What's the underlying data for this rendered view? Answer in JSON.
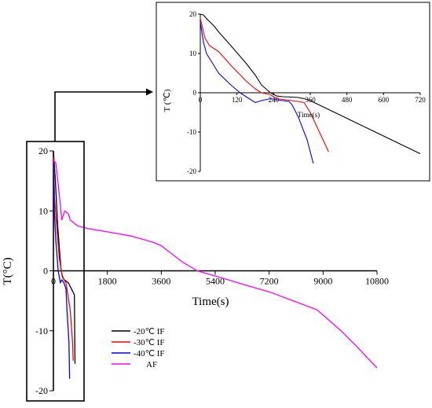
{
  "chart_data": [
    {
      "type": "line",
      "xlabel": "Time(s)",
      "ylabel": "T(°C)",
      "xlim": [
        0,
        10800
      ],
      "ylim": [
        -20,
        20
      ],
      "xticks": [
        "0",
        "1800",
        "3600",
        "5400",
        "7200",
        "9000",
        "10800"
      ],
      "yticks": [
        "20",
        "10",
        "0",
        "-10",
        "-20"
      ],
      "legend_position": "bottom-left",
      "series": [
        {
          "name": "-20℃ IF",
          "color": "#000000",
          "x": [
            0,
            60,
            150,
            250,
            300,
            320,
            360,
            500,
            600,
            700,
            720
          ],
          "y": [
            20,
            15.5,
            7,
            0.5,
            -1,
            -1.2,
            -1.5,
            -2,
            -3,
            -4,
            -15.5
          ]
        },
        {
          "name": "-30℃ IF",
          "color": "#ff0000",
          "x": [
            0,
            40,
            100,
            200,
            280,
            350,
            420,
            560,
            640,
            660
          ],
          "y": [
            19,
            12,
            8,
            2,
            -0.5,
            -1.5,
            -2,
            -6.5,
            -12,
            -15
          ]
        },
        {
          "name": "-40℃ IF",
          "color": "#0000ff",
          "x": [
            0,
            30,
            80,
            160,
            230,
            280,
            350,
            420,
            460,
            520,
            540
          ],
          "y": [
            18,
            10,
            5,
            0,
            -2,
            -1.5,
            -2,
            -3,
            -7,
            -12,
            -18
          ]
        },
        {
          "name": "AF",
          "color": "#ff00ff",
          "x": [
            0,
            80,
            160,
            280,
            380,
            500,
            560,
            800,
            1200,
            1800,
            2600,
            3300,
            3600,
            4300,
            4800,
            5500,
            6500,
            7200,
            8000,
            8800,
            9600,
            10100,
            10800
          ],
          "y": [
            18.5,
            18,
            14.5,
            8.5,
            10,
            9.5,
            8.5,
            7.5,
            7,
            6.5,
            5.8,
            4.8,
            4.2,
            1.5,
            0,
            -1,
            -2.5,
            -3.5,
            -5,
            -6.5,
            -10,
            -12.5,
            -16.2
          ]
        }
      ]
    },
    {
      "type": "line",
      "xlabel": "Time(s)",
      "ylabel": "T (℃)",
      "xlim": [
        0,
        720
      ],
      "ylim": [
        -20,
        20
      ],
      "xticks": [
        "0",
        "120",
        "240",
        "360",
        "480",
        "600",
        "720"
      ],
      "yticks": [
        "20",
        "10",
        "0",
        "-10",
        "-20"
      ],
      "series": [
        {
          "color": "#000000",
          "x": [
            0,
            10,
            25,
            45,
            60,
            100,
            150,
            180,
            200,
            230,
            250,
            270,
            300,
            320,
            340,
            360,
            720
          ],
          "y": [
            20,
            19.8,
            18.5,
            17,
            15.5,
            12,
            7.5,
            4.5,
            2,
            0,
            -0.8,
            -1,
            -1.1,
            -1.2,
            -1.5,
            -2,
            -15.5
          ]
        },
        {
          "color": "#ff0000",
          "x": [
            0,
            15,
            30,
            60,
            100,
            150,
            180,
            200,
            230,
            250,
            280,
            300,
            320,
            340,
            360,
            420
          ],
          "y": [
            19,
            14,
            12,
            10.5,
            7,
            3,
            1,
            0,
            -0.5,
            -1.5,
            -1.8,
            -2,
            -2.2,
            -2.5,
            -5,
            -15
          ]
        },
        {
          "color": "#0000ff",
          "x": [
            0,
            10,
            20,
            40,
            60,
            80,
            100,
            130,
            160,
            180,
            200,
            230,
            250,
            270,
            290,
            300,
            320,
            350,
            370
          ],
          "y": [
            18,
            13,
            10,
            7.5,
            5,
            3.5,
            2,
            0,
            -1.5,
            -2.5,
            -2,
            -1.5,
            -1.8,
            -2,
            -2.2,
            -3,
            -6,
            -12,
            -18
          ]
        }
      ]
    }
  ]
}
